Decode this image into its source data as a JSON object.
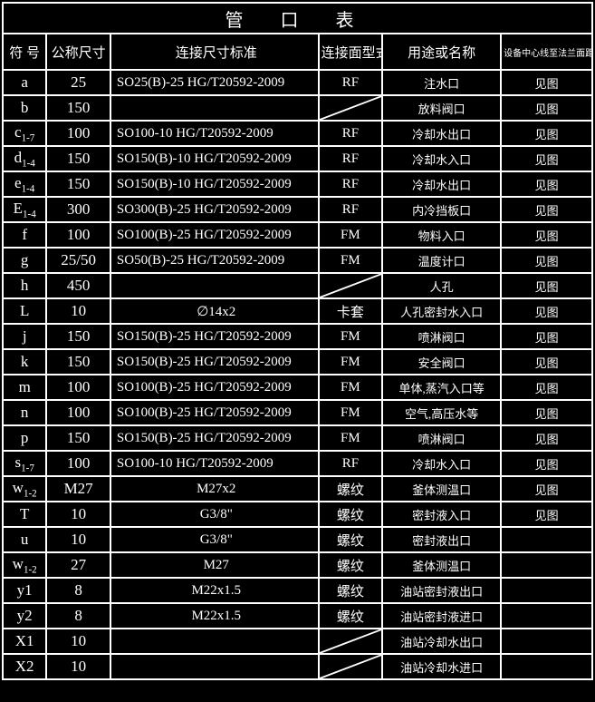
{
  "title": "管 口 表",
  "headers": {
    "symbol": "符 号",
    "size": "公称尺寸",
    "std": "连接尺寸标准",
    "face": "连接面型式",
    "use": "用途或名称",
    "dist": "设备中心线至法兰面距离"
  },
  "rows": [
    {
      "sym": "a",
      "size": "25",
      "std": "SO25(B)-25 HG/T20592-2009",
      "face": "RF",
      "use": "注水口",
      "dist": "见图"
    },
    {
      "sym": "b",
      "size": "150",
      "std": "",
      "face": "DIAG",
      "use": "放料阀口",
      "dist": "见图"
    },
    {
      "sym": "c<sub>1-7</sub>",
      "size": "100",
      "std": "SO100-10 HG/T20592-2009",
      "face": "RF",
      "use": "冷却水出口",
      "dist": "见图"
    },
    {
      "sym": "d<sub>1-4</sub>",
      "size": "150",
      "std": "SO150(B)-10 HG/T20592-2009",
      "face": "RF",
      "use": "冷却水入口",
      "dist": "见图"
    },
    {
      "sym": "e<sub>1-4</sub>",
      "size": "150",
      "std": "SO150(B)-10 HG/T20592-2009",
      "face": "RF",
      "use": "冷却水出口",
      "dist": "见图"
    },
    {
      "sym": "E<sub>1-4</sub>",
      "size": "300",
      "std": "SO300(B)-25 HG/T20592-2009",
      "face": "RF",
      "use": "内冷挡板口",
      "dist": "见图"
    },
    {
      "sym": "f",
      "size": "100",
      "std": "SO100(B)-25 HG/T20592-2009",
      "face": "FM",
      "use": "物料入口",
      "dist": "见图"
    },
    {
      "sym": "g",
      "size": "25/50",
      "std": "SO50(B)-25  HG/T20592-2009",
      "face": "FM",
      "use": "温度计口",
      "dist": "见图"
    },
    {
      "sym": "h",
      "size": "450",
      "std": "",
      "face": "DIAG",
      "use": "人孔",
      "dist": "见图"
    },
    {
      "sym": "L",
      "size": "10",
      "std": "∅14x2",
      "stdCenter": true,
      "face": "卡套",
      "use": "人孔密封水入口",
      "dist": "见图"
    },
    {
      "sym": "j",
      "size": "150",
      "std": "SO150(B)-25 HG/T20592-2009",
      "face": "FM",
      "use": "喷淋阀口",
      "dist": "见图"
    },
    {
      "sym": "k",
      "size": "150",
      "std": "SO150(B)-25 HG/T20592-2009",
      "face": "FM",
      "use": "安全阀口",
      "dist": "见图"
    },
    {
      "sym": "m",
      "size": "100",
      "std": "SO100(B)-25 HG/T20592-2009",
      "face": "FM",
      "use": "单体,蒸汽入口等",
      "dist": "见图"
    },
    {
      "sym": "n",
      "size": "100",
      "std": "SO100(B)-25 HG/T20592-2009",
      "face": "FM",
      "use": "空气,高压水等",
      "dist": "见图"
    },
    {
      "sym": "p",
      "size": "150",
      "std": "SO150(B)-25 HG/T20592-2009",
      "face": "FM",
      "use": "喷淋阀口",
      "dist": "见图"
    },
    {
      "sym": "s<sub>1-7</sub>",
      "size": "100",
      "std": "SO100-10 HG/T20592-2009",
      "face": "RF",
      "use": "冷却水入口",
      "dist": "见图"
    },
    {
      "sym": "w<sub>1-2</sub>",
      "size": "M27",
      "std": "M27x2",
      "stdCenter": true,
      "face": "螺纹",
      "use": "釜体测温口",
      "dist": "见图"
    },
    {
      "sym": "T",
      "size": "10",
      "std": "G3/8\"",
      "stdCenter": true,
      "face": "螺纹",
      "use": "密封液入口",
      "dist": "见图"
    },
    {
      "sym": "u",
      "size": "10",
      "std": "G3/8\"",
      "stdCenter": true,
      "face": "螺纹",
      "use": "密封液出口",
      "dist": ""
    },
    {
      "sym": "w<sub>1-2</sub>",
      "size": "27",
      "std": "M27",
      "stdCenter": true,
      "face": "螺纹",
      "use": "釜体测温口",
      "dist": ""
    },
    {
      "sym": "y1",
      "size": "8",
      "std": "M22x1.5",
      "stdCenter": true,
      "face": "螺纹",
      "use": "油站密封液出口",
      "dist": ""
    },
    {
      "sym": "y2",
      "size": "8",
      "std": "M22x1.5",
      "stdCenter": true,
      "face": "螺纹",
      "use": "油站密封液进口",
      "dist": ""
    },
    {
      "sym": "X1",
      "size": "10",
      "std": "",
      "face": "DIAG",
      "use": "油站冷却水出口",
      "dist": ""
    },
    {
      "sym": "X2",
      "size": "10",
      "std": "",
      "face": "DIAG",
      "use": "油站冷却水进口",
      "dist": ""
    }
  ]
}
